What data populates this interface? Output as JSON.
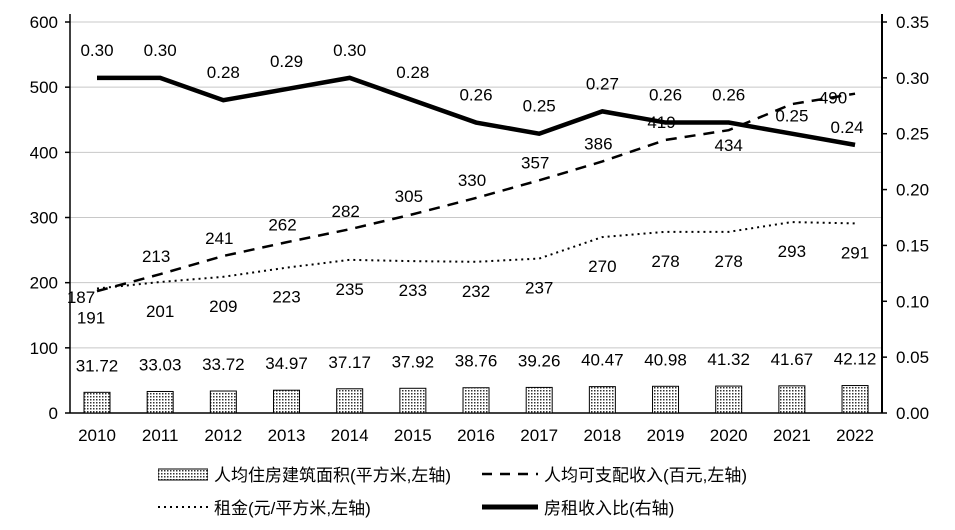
{
  "chart_data": {
    "type": "bar+line",
    "categories": [
      "2010",
      "2011",
      "2012",
      "2013",
      "2014",
      "2015",
      "2016",
      "2017",
      "2018",
      "2019",
      "2020",
      "2021",
      "2022"
    ],
    "left_axis": {
      "min": 0,
      "max": 600,
      "ticks": [
        "0",
        "100",
        "200",
        "300",
        "400",
        "500",
        "600"
      ]
    },
    "right_axis": {
      "min": 0,
      "max": 0.35,
      "ticks": [
        "0.00",
        "0.05",
        "0.10",
        "0.15",
        "0.20",
        "0.25",
        "0.30",
        "0.35"
      ]
    },
    "grid": true,
    "legend_placement": "bottom",
    "series": [
      {
        "name": "人均住房建筑面积(平方米,左轴)",
        "type": "bar",
        "axis": "left",
        "values": [
          31.72,
          33.03,
          33.72,
          34.97,
          37.17,
          37.92,
          38.76,
          39.26,
          40.47,
          40.98,
          41.32,
          41.67,
          42.12
        ],
        "labels": [
          "31.72",
          "33.03",
          "33.72",
          "34.97",
          "37.17",
          "37.92",
          "38.76",
          "39.26",
          "40.47",
          "40.98",
          "41.32",
          "41.67",
          "42.12"
        ]
      },
      {
        "name": "人均可支配收入(百元,左轴)",
        "type": "line-dashed",
        "axis": "left",
        "values": [
          187,
          213,
          241,
          262,
          282,
          305,
          330,
          357,
          386,
          419,
          434,
          474,
          490
        ],
        "labels": [
          "187",
          "213",
          "241",
          "262",
          "282",
          "305",
          "330",
          "357",
          "386",
          "419",
          "434",
          "",
          "490"
        ]
      },
      {
        "name": "租金(元/平方米,左轴)",
        "type": "line-dotted",
        "axis": "left",
        "values": [
          191,
          201,
          209,
          223,
          235,
          233,
          232,
          237,
          270,
          278,
          278,
          293,
          291
        ],
        "labels": [
          "191",
          "201",
          "209",
          "223",
          "235",
          "233",
          "232",
          "237",
          "270",
          "278",
          "278",
          "293",
          "291"
        ]
      },
      {
        "name": "房租收入比(右轴)",
        "type": "line-solid",
        "axis": "right",
        "values": [
          0.3,
          0.3,
          0.28,
          0.29,
          0.3,
          0.28,
          0.26,
          0.25,
          0.27,
          0.26,
          0.26,
          0.25,
          0.24
        ],
        "labels": [
          "0.30",
          "0.30",
          "0.28",
          "0.29",
          "0.30",
          "0.28",
          "0.26",
          "0.25",
          "0.27",
          "0.26",
          "0.26",
          "0.25",
          "0.24"
        ]
      }
    ]
  }
}
